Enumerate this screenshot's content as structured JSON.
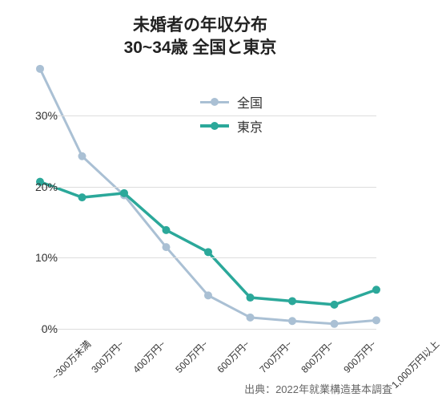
{
  "title_line1": "未婚者の年収分布",
  "title_line2": "30~34歳 全国と東京",
  "source": "出典：2022年就業構造基本調査",
  "legend": {
    "series1": "全国",
    "series2": "東京"
  },
  "chart": {
    "type": "line",
    "categories": [
      "~300万未満",
      "300万円~",
      "400万円~",
      "500万円~",
      "600万円~",
      "700万円~",
      "800万円~",
      "900万円~",
      "1,000万円以上"
    ],
    "ylim": [
      0,
      35
    ],
    "yticks": [
      0,
      10,
      20,
      30
    ],
    "ytick_labels": [
      "0%",
      "10%",
      "20%",
      "30%"
    ],
    "series": [
      {
        "name": "全国",
        "color": "#aac0d4",
        "marker_color": "#aac0d4",
        "line_width": 3,
        "marker_radius": 5,
        "values": [
          36.6,
          24.3,
          18.8,
          11.5,
          4.7,
          1.6,
          1.1,
          0.7,
          1.2
        ]
      },
      {
        "name": "東京",
        "color": "#2ba89a",
        "marker_color": "#2ba89a",
        "line_width": 3.5,
        "marker_radius": 5,
        "values": [
          20.7,
          18.5,
          19.1,
          13.9,
          10.8,
          4.4,
          3.9,
          3.4,
          5.5
        ]
      }
    ],
    "grid_color": "#dddddd",
    "background_color": "#ffffff",
    "title_fontsize": 21,
    "axis_fontsize": 14,
    "xlabel_fontsize": 12,
    "xlabel_rotation": -45
  }
}
